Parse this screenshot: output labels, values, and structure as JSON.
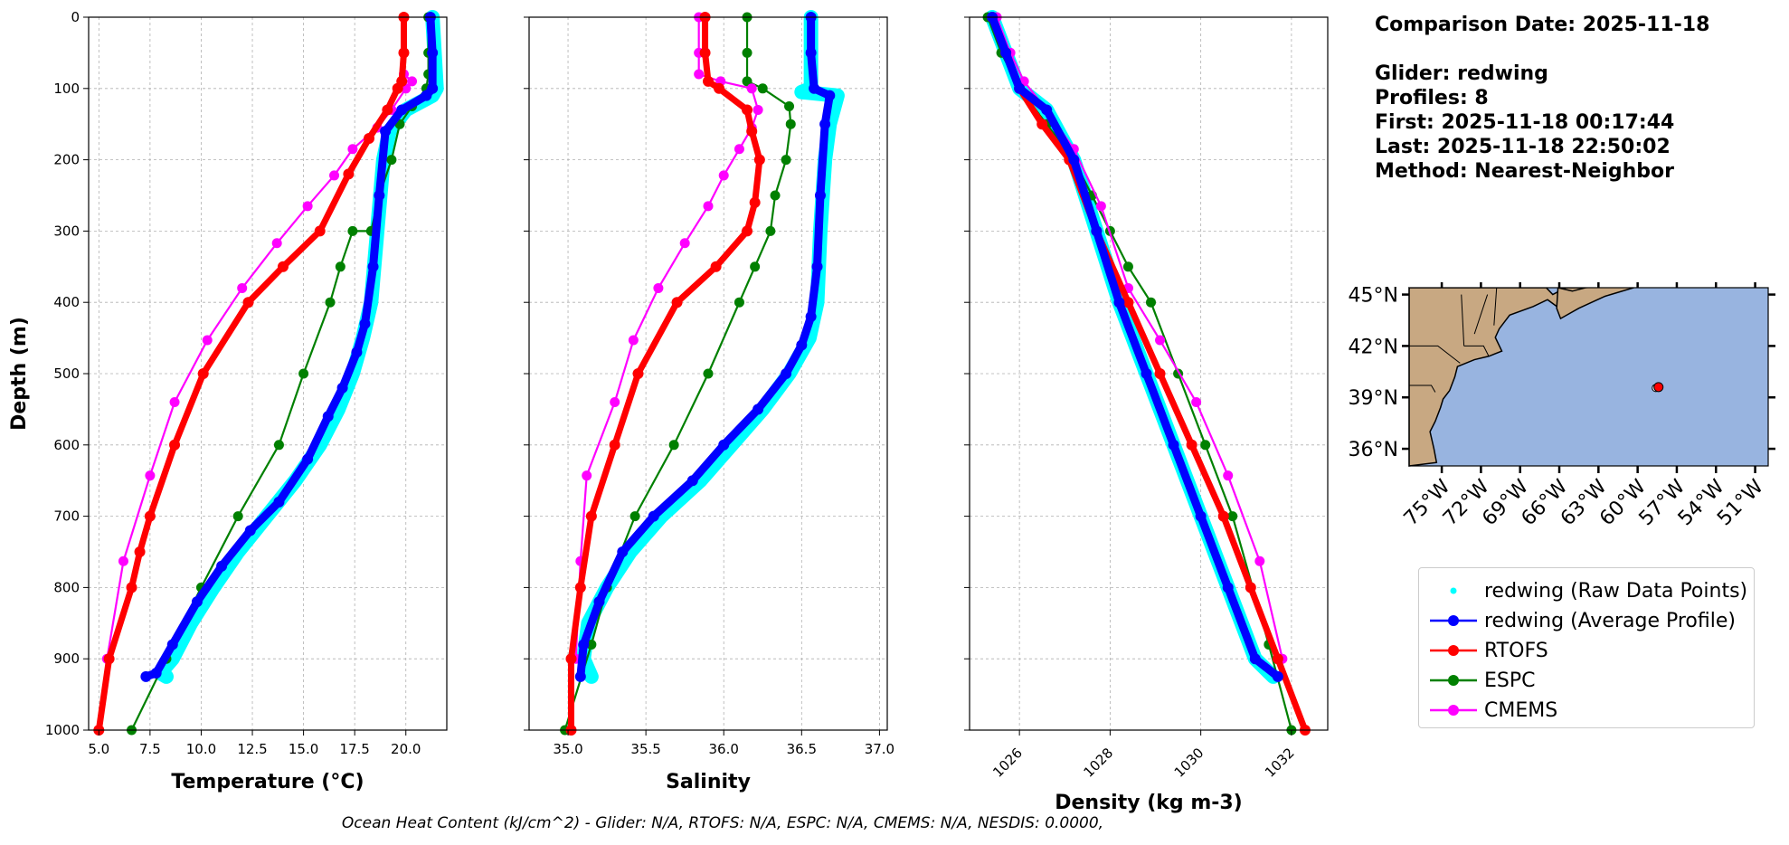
{
  "info": {
    "comparison_date": "Comparison Date: 2025-11-18",
    "glider": "Glider: redwing",
    "profiles": "Profiles: 8",
    "first": "First: 2025-11-18 00:17:44",
    "last": "Last: 2025-11-18 22:50:02",
    "method": "Method: Nearest-Neighbor"
  },
  "footer": "Ocean Heat Content (kJ/cm^2) - Glider: N/A,  RTOFS: N/A,  ESPC: N/A,  CMEMS: N/A,  NESDIS: 0.0000,",
  "colors": {
    "raw": "#00ffff",
    "glider": "#0000ff",
    "rtofs": "#ff0000",
    "espc": "#008000",
    "cmems": "#ff00ff",
    "land": "#c8a882",
    "ocean": "#98b4e0",
    "grid": "#b0b0b0"
  },
  "chart_data": [
    {
      "type": "line",
      "xlabel": "Temperature (°C)",
      "ylabel": "Depth (m)",
      "xlim": [
        4.5,
        22.0
      ],
      "ylim": [
        1000,
        0
      ],
      "xticks": [
        "5.0",
        "7.5",
        "10.0",
        "12.5",
        "15.0",
        "17.5",
        "20.0"
      ],
      "xtick_values": [
        5,
        7.5,
        10,
        12.5,
        15,
        17.5,
        20
      ],
      "yticks": [
        0,
        100,
        200,
        300,
        400,
        500,
        600,
        700,
        800,
        900,
        1000
      ],
      "grid": true,
      "series": [
        {
          "name": "redwing (Raw Data Points)",
          "color": "#00ffff",
          "x": [
            21.3,
            21.4,
            21.5,
            21.3,
            20.0,
            19.2,
            18.9,
            18.6,
            18.3,
            17.9,
            17.4,
            16.7,
            15.8,
            14.6,
            13.2,
            11.8,
            10.6,
            9.5,
            8.6,
            8.0,
            8.3
          ],
          "depth": [
            0,
            50,
            100,
            110,
            130,
            160,
            200,
            300,
            400,
            450,
            500,
            550,
            600,
            650,
            700,
            750,
            800,
            850,
            900,
            920,
            925
          ]
        },
        {
          "name": "redwing (Average Profile)",
          "color": "#0000ff",
          "x": [
            21.2,
            21.3,
            21.3,
            21.0,
            19.8,
            19.0,
            18.7,
            18.4,
            18.0,
            17.6,
            16.9,
            16.2,
            15.2,
            13.8,
            12.4,
            11.0,
            9.8,
            8.6,
            7.8,
            7.3
          ],
          "depth": [
            0,
            50,
            100,
            110,
            130,
            160,
            250,
            350,
            430,
            470,
            520,
            560,
            620,
            680,
            720,
            770,
            820,
            880,
            920,
            925
          ]
        },
        {
          "name": "RTOFS",
          "color": "#ff0000",
          "x": [
            19.9,
            19.9,
            19.8,
            19.6,
            19.1,
            18.2,
            17.2,
            15.8,
            14.0,
            12.3,
            10.1,
            8.7,
            7.5,
            7.0,
            6.6,
            5.5,
            5.0
          ],
          "depth": [
            0,
            50,
            90,
            100,
            130,
            170,
            220,
            300,
            350,
            400,
            500,
            600,
            700,
            750,
            800,
            900,
            1000
          ]
        },
        {
          "name": "ESPC",
          "color": "#008000",
          "x": [
            21.1,
            21.1,
            21.1,
            21.0,
            20.3,
            19.7,
            19.3,
            18.7,
            18.3,
            17.4,
            16.8,
            16.3,
            15.0,
            13.8,
            11.8,
            10.0,
            8.6,
            8.3,
            6.6
          ],
          "depth": [
            0,
            50,
            80,
            100,
            125,
            150,
            200,
            250,
            300,
            300,
            350,
            400,
            500,
            600,
            700,
            800,
            880,
            900,
            1000
          ]
        },
        {
          "name": "CMEMS",
          "color": "#ff00ff",
          "x": [
            19.9,
            19.9,
            19.9,
            20.3,
            20.0,
            19.3,
            18.6,
            17.4,
            16.5,
            15.2,
            13.7,
            12.0,
            10.3,
            8.7,
            7.5,
            6.2,
            5.4
          ],
          "depth": [
            0,
            50,
            80,
            90,
            100,
            130,
            155,
            185,
            222,
            265,
            317,
            380,
            453,
            540,
            643,
            763,
            900
          ]
        }
      ]
    },
    {
      "type": "line",
      "xlabel": "Salinity",
      "xlim": [
        34.75,
        37.05
      ],
      "ylim": [
        1000,
        0
      ],
      "xticks": [
        "35.0",
        "35.5",
        "36.0",
        "36.5",
        "37.0"
      ],
      "xtick_values": [
        35.0,
        35.5,
        36.0,
        36.5,
        37.0
      ],
      "grid": true,
      "series": [
        {
          "name": "redwing (Raw Data Points)",
          "color": "#00ffff",
          "x": [
            36.56,
            36.56,
            36.56,
            36.5,
            36.73,
            36.68,
            36.65,
            36.62,
            36.6,
            36.55,
            36.42,
            36.25,
            36.05,
            35.85,
            35.6,
            35.4,
            35.25,
            35.13,
            35.1,
            35.15
          ],
          "depth": [
            0,
            50,
            100,
            105,
            110,
            150,
            200,
            300,
            400,
            450,
            500,
            550,
            600,
            650,
            700,
            750,
            800,
            850,
            900,
            925
          ]
        },
        {
          "name": "redwing (Average Profile)",
          "color": "#0000ff",
          "x": [
            36.56,
            36.56,
            36.58,
            36.68,
            36.65,
            36.62,
            36.6,
            36.56,
            36.5,
            36.4,
            36.22,
            36.0,
            35.8,
            35.55,
            35.35,
            35.2,
            35.1,
            35.08
          ],
          "depth": [
            0,
            50,
            100,
            110,
            150,
            250,
            350,
            420,
            460,
            500,
            550,
            600,
            650,
            700,
            750,
            820,
            880,
            925
          ]
        },
        {
          "name": "RTOFS",
          "color": "#ff0000",
          "x": [
            35.88,
            35.88,
            35.9,
            35.97,
            36.15,
            36.18,
            36.23,
            36.2,
            36.15,
            35.95,
            35.7,
            35.45,
            35.3,
            35.15,
            35.08,
            35.02,
            35.02
          ],
          "depth": [
            0,
            50,
            90,
            100,
            130,
            160,
            200,
            260,
            300,
            350,
            400,
            500,
            600,
            700,
            800,
            900,
            1000
          ]
        },
        {
          "name": "ESPC",
          "color": "#008000",
          "x": [
            36.15,
            36.15,
            36.15,
            36.25,
            36.42,
            36.43,
            36.4,
            36.33,
            36.3,
            36.2,
            36.1,
            35.9,
            35.68,
            35.43,
            35.25,
            35.15,
            34.98
          ],
          "depth": [
            0,
            50,
            90,
            100,
            125,
            150,
            200,
            250,
            300,
            350,
            400,
            500,
            600,
            700,
            800,
            880,
            1000
          ]
        },
        {
          "name": "CMEMS",
          "color": "#ff00ff",
          "x": [
            35.84,
            35.84,
            35.84,
            35.98,
            36.18,
            36.22,
            36.18,
            36.1,
            36.0,
            35.9,
            35.75,
            35.58,
            35.42,
            35.3,
            35.12,
            35.08,
            35.05
          ],
          "depth": [
            0,
            50,
            80,
            90,
            100,
            130,
            155,
            185,
            222,
            265,
            317,
            380,
            453,
            540,
            643,
            763,
            900
          ]
        }
      ]
    },
    {
      "type": "line",
      "xlabel": "Density (kg m-3)",
      "xlim": [
        1024.9,
        1032.8
      ],
      "ylim": [
        1000,
        0
      ],
      "xticks": [
        "1026",
        "1028",
        "1030",
        "1032"
      ],
      "xtick_values": [
        1026,
        1028,
        1030,
        1032
      ],
      "grid": true,
      "series": [
        {
          "name": "redwing (Raw Data Points)",
          "color": "#00ffff",
          "x": [
            1025.4,
            1025.7,
            1026.0,
            1026.6,
            1027.2,
            1027.7,
            1028.2,
            1028.8,
            1029.4,
            1030.0,
            1030.6,
            1031.2,
            1031.6
          ],
          "depth": [
            0,
            50,
            100,
            130,
            200,
            300,
            400,
            500,
            600,
            700,
            800,
            900,
            925
          ]
        },
        {
          "name": "redwing (Average Profile)",
          "color": "#0000ff",
          "x": [
            1025.4,
            1025.7,
            1026.0,
            1026.6,
            1027.2,
            1027.7,
            1028.2,
            1028.8,
            1029.4,
            1030.0,
            1030.6,
            1031.2,
            1031.7
          ],
          "depth": [
            0,
            50,
            100,
            130,
            200,
            300,
            400,
            500,
            600,
            700,
            800,
            900,
            925
          ]
        },
        {
          "name": "RTOFS",
          "color": "#ff0000",
          "x": [
            1025.4,
            1025.7,
            1026.0,
            1026.5,
            1027.1,
            1027.7,
            1028.4,
            1029.1,
            1029.8,
            1030.5,
            1031.1,
            1031.7,
            1032.3
          ],
          "depth": [
            0,
            50,
            100,
            150,
            200,
            300,
            400,
            500,
            600,
            700,
            800,
            900,
            1000
          ]
        },
        {
          "name": "ESPC",
          "color": "#008000",
          "x": [
            1025.3,
            1025.6,
            1026.0,
            1026.6,
            1027.2,
            1027.6,
            1028.0,
            1028.4,
            1028.9,
            1029.5,
            1030.1,
            1030.7,
            1031.5,
            1032.0
          ],
          "depth": [
            0,
            50,
            100,
            150,
            200,
            250,
            300,
            350,
            400,
            500,
            600,
            700,
            880,
            1000
          ]
        },
        {
          "name": "CMEMS",
          "color": "#ff00ff",
          "x": [
            1025.5,
            1025.8,
            1026.1,
            1026.6,
            1027.2,
            1027.8,
            1028.4,
            1029.1,
            1029.9,
            1030.6,
            1031.3,
            1031.8
          ],
          "depth": [
            0,
            50,
            90,
            130,
            185,
            265,
            380,
            453,
            540,
            643,
            763,
            900
          ]
        }
      ]
    },
    {
      "type": "map",
      "lat_ticks": [
        "36°N",
        "39°N",
        "42°N",
        "45°N"
      ],
      "lat_values": [
        36,
        39,
        42,
        45
      ],
      "lon_ticks": [
        "75°W",
        "72°W",
        "69°W",
        "66°W",
        "63°W",
        "60°W",
        "57°W",
        "54°W",
        "51°W"
      ],
      "lon_values": [
        -75,
        -72,
        -69,
        -66,
        -63,
        -60,
        -57,
        -54,
        -51
      ],
      "lon_range": [
        -77.5,
        -50.0
      ],
      "lat_range": [
        35.0,
        45.4
      ],
      "glider_position": {
        "lon": -58.4,
        "lat": 39.6
      }
    }
  ],
  "legend": [
    {
      "label": "redwing (Raw Data Points)",
      "style": "dot",
      "color": "#00ffff"
    },
    {
      "label": "redwing (Average Profile)",
      "style": "line-marker",
      "color": "#0000ff"
    },
    {
      "label": "RTOFS",
      "style": "line-marker",
      "color": "#ff0000"
    },
    {
      "label": "ESPC",
      "style": "line-marker",
      "color": "#008000"
    },
    {
      "label": "CMEMS",
      "style": "line-marker",
      "color": "#ff00ff"
    }
  ]
}
